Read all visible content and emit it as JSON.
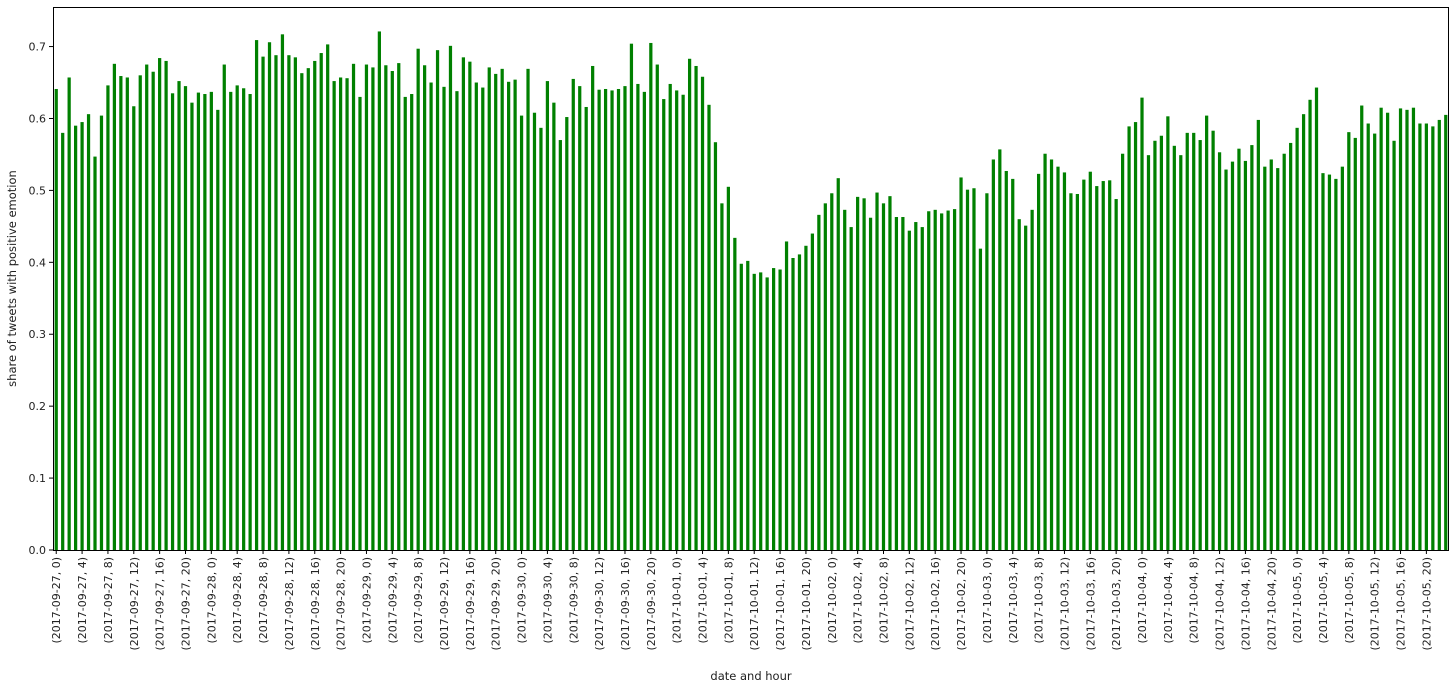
{
  "chart_data": {
    "type": "bar",
    "xlabel": "date and hour",
    "ylabel": "share of tweets with positive emotion",
    "ylim": [
      0,
      0.755
    ],
    "yticks": [
      0.0,
      0.1,
      0.2,
      0.3,
      0.4,
      0.5,
      0.6,
      0.7
    ],
    "ytick_labels": [
      "0.0",
      "0.1",
      "0.2",
      "0.3",
      "0.4",
      "0.5",
      "0.6",
      "0.7"
    ],
    "grid": false,
    "bar_color": "#008000",
    "x_tick_every": 4,
    "categories": [
      "(2017-09-27, 0)",
      "(2017-09-27, 1)",
      "(2017-09-27, 2)",
      "(2017-09-27, 3)",
      "(2017-09-27, 4)",
      "(2017-09-27, 5)",
      "(2017-09-27, 6)",
      "(2017-09-27, 7)",
      "(2017-09-27, 8)",
      "(2017-09-27, 9)",
      "(2017-09-27, 10)",
      "(2017-09-27, 11)",
      "(2017-09-27, 12)",
      "(2017-09-27, 13)",
      "(2017-09-27, 14)",
      "(2017-09-27, 15)",
      "(2017-09-27, 16)",
      "(2017-09-27, 17)",
      "(2017-09-27, 18)",
      "(2017-09-27, 19)",
      "(2017-09-27, 20)",
      "(2017-09-27, 21)",
      "(2017-09-27, 22)",
      "(2017-09-27, 23)",
      "(2017-09-28, 0)",
      "(2017-09-28, 1)",
      "(2017-09-28, 2)",
      "(2017-09-28, 3)",
      "(2017-09-28, 4)",
      "(2017-09-28, 5)",
      "(2017-09-28, 6)",
      "(2017-09-28, 7)",
      "(2017-09-28, 8)",
      "(2017-09-28, 9)",
      "(2017-09-28, 10)",
      "(2017-09-28, 11)",
      "(2017-09-28, 12)",
      "(2017-09-28, 13)",
      "(2017-09-28, 14)",
      "(2017-09-28, 15)",
      "(2017-09-28, 16)",
      "(2017-09-28, 17)",
      "(2017-09-28, 18)",
      "(2017-09-28, 19)",
      "(2017-09-28, 20)",
      "(2017-09-28, 21)",
      "(2017-09-28, 22)",
      "(2017-09-28, 23)",
      "(2017-09-29, 0)",
      "(2017-09-29, 1)",
      "(2017-09-29, 2)",
      "(2017-09-29, 3)",
      "(2017-09-29, 4)",
      "(2017-09-29, 5)",
      "(2017-09-29, 6)",
      "(2017-09-29, 7)",
      "(2017-09-29, 8)",
      "(2017-09-29, 9)",
      "(2017-09-29, 10)",
      "(2017-09-29, 11)",
      "(2017-09-29, 12)",
      "(2017-09-29, 13)",
      "(2017-09-29, 14)",
      "(2017-09-29, 15)",
      "(2017-09-29, 16)",
      "(2017-09-29, 17)",
      "(2017-09-29, 18)",
      "(2017-09-29, 19)",
      "(2017-09-29, 20)",
      "(2017-09-29, 21)",
      "(2017-09-29, 22)",
      "(2017-09-29, 23)",
      "(2017-09-30, 0)",
      "(2017-09-30, 1)",
      "(2017-09-30, 2)",
      "(2017-09-30, 3)",
      "(2017-09-30, 4)",
      "(2017-09-30, 5)",
      "(2017-09-30, 6)",
      "(2017-09-30, 7)",
      "(2017-09-30, 8)",
      "(2017-09-30, 9)",
      "(2017-09-30, 10)",
      "(2017-09-30, 11)",
      "(2017-09-30, 12)",
      "(2017-09-30, 13)",
      "(2017-09-30, 14)",
      "(2017-09-30, 15)",
      "(2017-09-30, 16)",
      "(2017-09-30, 17)",
      "(2017-09-30, 18)",
      "(2017-09-30, 19)",
      "(2017-09-30, 20)",
      "(2017-09-30, 21)",
      "(2017-09-30, 22)",
      "(2017-09-30, 23)",
      "(2017-10-01, 0)",
      "(2017-10-01, 1)",
      "(2017-10-01, 2)",
      "(2017-10-01, 3)",
      "(2017-10-01, 4)",
      "(2017-10-01, 5)",
      "(2017-10-01, 6)",
      "(2017-10-01, 7)",
      "(2017-10-01, 8)",
      "(2017-10-01, 9)",
      "(2017-10-01, 10)",
      "(2017-10-01, 11)",
      "(2017-10-01, 12)",
      "(2017-10-01, 13)",
      "(2017-10-01, 14)",
      "(2017-10-01, 15)",
      "(2017-10-01, 16)",
      "(2017-10-01, 17)",
      "(2017-10-01, 18)",
      "(2017-10-01, 19)",
      "(2017-10-01, 20)",
      "(2017-10-01, 21)",
      "(2017-10-01, 22)",
      "(2017-10-01, 23)",
      "(2017-10-02, 0)",
      "(2017-10-02, 1)",
      "(2017-10-02, 2)",
      "(2017-10-02, 3)",
      "(2017-10-02, 4)",
      "(2017-10-02, 5)",
      "(2017-10-02, 6)",
      "(2017-10-02, 7)",
      "(2017-10-02, 8)",
      "(2017-10-02, 9)",
      "(2017-10-02, 10)",
      "(2017-10-02, 11)",
      "(2017-10-02, 12)",
      "(2017-10-02, 13)",
      "(2017-10-02, 14)",
      "(2017-10-02, 15)",
      "(2017-10-02, 16)",
      "(2017-10-02, 17)",
      "(2017-10-02, 18)",
      "(2017-10-02, 19)",
      "(2017-10-02, 20)",
      "(2017-10-02, 21)",
      "(2017-10-02, 22)",
      "(2017-10-02, 23)",
      "(2017-10-03, 0)",
      "(2017-10-03, 1)",
      "(2017-10-03, 2)",
      "(2017-10-03, 3)",
      "(2017-10-03, 4)",
      "(2017-10-03, 5)",
      "(2017-10-03, 6)",
      "(2017-10-03, 7)",
      "(2017-10-03, 8)",
      "(2017-10-03, 9)",
      "(2017-10-03, 10)",
      "(2017-10-03, 11)",
      "(2017-10-03, 12)",
      "(2017-10-03, 13)",
      "(2017-10-03, 14)",
      "(2017-10-03, 15)",
      "(2017-10-03, 16)",
      "(2017-10-03, 17)",
      "(2017-10-03, 18)",
      "(2017-10-03, 19)",
      "(2017-10-03, 20)",
      "(2017-10-03, 21)",
      "(2017-10-03, 22)",
      "(2017-10-03, 23)",
      "(2017-10-04, 0)",
      "(2017-10-04, 1)",
      "(2017-10-04, 2)",
      "(2017-10-04, 3)",
      "(2017-10-04, 4)",
      "(2017-10-04, 5)",
      "(2017-10-04, 6)",
      "(2017-10-04, 7)",
      "(2017-10-04, 8)",
      "(2017-10-04, 9)",
      "(2017-10-04, 10)",
      "(2017-10-04, 11)",
      "(2017-10-04, 12)",
      "(2017-10-04, 13)",
      "(2017-10-04, 14)",
      "(2017-10-04, 15)",
      "(2017-10-04, 16)",
      "(2017-10-04, 17)",
      "(2017-10-04, 18)",
      "(2017-10-04, 19)",
      "(2017-10-04, 20)",
      "(2017-10-04, 21)",
      "(2017-10-04, 22)",
      "(2017-10-04, 23)",
      "(2017-10-05, 0)",
      "(2017-10-05, 1)",
      "(2017-10-05, 2)",
      "(2017-10-05, 3)",
      "(2017-10-05, 4)",
      "(2017-10-05, 5)",
      "(2017-10-05, 6)",
      "(2017-10-05, 7)",
      "(2017-10-05, 8)",
      "(2017-10-05, 9)",
      "(2017-10-05, 10)",
      "(2017-10-05, 11)",
      "(2017-10-05, 12)",
      "(2017-10-05, 13)",
      "(2017-10-05, 14)",
      "(2017-10-05, 15)",
      "(2017-10-05, 16)",
      "(2017-10-05, 17)",
      "(2017-10-05, 18)",
      "(2017-10-05, 19)",
      "(2017-10-05, 20)",
      "(2017-10-05, 21)",
      "(2017-10-05, 22)",
      "(2017-10-05, 23)"
    ],
    "values": [
      0.641,
      0.58,
      0.657,
      0.59,
      0.595,
      0.606,
      0.547,
      0.604,
      0.646,
      0.676,
      0.659,
      0.657,
      0.617,
      0.66,
      0.675,
      0.665,
      0.684,
      0.68,
      0.635,
      0.652,
      0.645,
      0.622,
      0.636,
      0.634,
      0.637,
      0.612,
      0.675,
      0.637,
      0.646,
      0.642,
      0.634,
      0.709,
      0.686,
      0.706,
      0.688,
      0.717,
      0.688,
      0.685,
      0.663,
      0.67,
      0.68,
      0.691,
      0.703,
      0.652,
      0.657,
      0.656,
      0.676,
      0.63,
      0.675,
      0.671,
      0.721,
      0.674,
      0.666,
      0.677,
      0.63,
      0.634,
      0.697,
      0.674,
      0.65,
      0.695,
      0.644,
      0.701,
      0.638,
      0.685,
      0.679,
      0.65,
      0.643,
      0.671,
      0.662,
      0.669,
      0.651,
      0.654,
      0.604,
      0.669,
      0.608,
      0.587,
      0.652,
      0.622,
      0.57,
      0.602,
      0.655,
      0.645,
      0.616,
      0.673,
      0.64,
      0.641,
      0.639,
      0.641,
      0.645,
      0.704,
      0.648,
      0.637,
      0.705,
      0.675,
      0.627,
      0.648,
      0.639,
      0.633,
      0.683,
      0.673,
      0.658,
      0.619,
      0.567,
      0.482,
      0.505,
      0.434,
      0.398,
      0.402,
      0.384,
      0.386,
      0.379,
      0.392,
      0.39,
      0.429,
      0.406,
      0.411,
      0.423,
      0.44,
      0.466,
      0.482,
      0.496,
      0.517,
      0.473,
      0.449,
      0.491,
      0.489,
      0.462,
      0.497,
      0.482,
      0.492,
      0.463,
      0.463,
      0.444,
      0.456,
      0.449,
      0.471,
      0.473,
      0.468,
      0.472,
      0.474,
      0.518,
      0.501,
      0.503,
      0.419,
      0.496,
      0.543,
      0.557,
      0.527,
      0.516,
      0.46,
      0.451,
      0.473,
      0.523,
      0.551,
      0.543,
      0.533,
      0.525,
      0.496,
      0.495,
      0.515,
      0.526,
      0.506,
      0.513,
      0.514,
      0.488,
      0.551,
      0.589,
      0.595,
      0.629,
      0.549,
      0.569,
      0.576,
      0.603,
      0.562,
      0.549,
      0.58,
      0.58,
      0.57,
      0.604,
      0.583,
      0.553,
      0.529,
      0.54,
      0.558,
      0.541,
      0.563,
      0.598,
      0.533,
      0.543,
      0.531,
      0.551,
      0.566,
      0.587,
      0.606,
      0.626,
      0.643,
      0.524,
      0.522,
      0.516,
      0.533,
      0.581,
      0.573,
      0.618,
      0.593,
      0.579,
      0.615,
      0.608,
      0.569,
      0.614,
      0.612,
      0.615,
      0.593,
      0.593,
      0.589,
      0.598,
      0.605
    ]
  }
}
